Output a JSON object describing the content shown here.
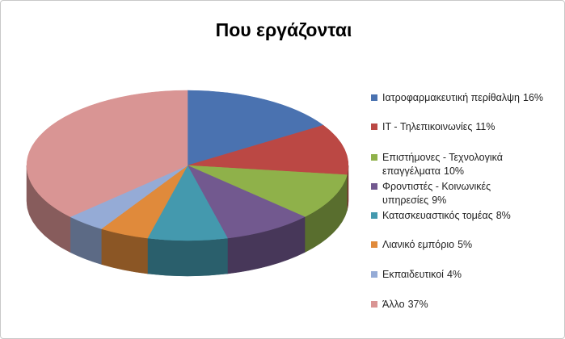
{
  "chart_data": {
    "type": "pie",
    "title": "Που εργάζονται",
    "categories": [
      "Ιατροφαρμακευτική περίθαλψη",
      "IT - Τηλεπικοινωνίες",
      "Επιστήμονες - Τεχνολογικά επαγγέλματα",
      "Φροντιστές - Κοινωνικές υπηρεσίες",
      "Κατασκευαστικός τομέας",
      "Λιανικό εμπόριο",
      "Εκπαιδευτικοί",
      "Άλλο"
    ],
    "values": [
      16,
      11,
      10,
      9,
      8,
      5,
      4,
      37
    ],
    "value_labels": [
      "16%",
      "11%",
      "10%",
      "9%",
      "8%",
      "5%",
      "4%",
      "37%"
    ],
    "colors": [
      "#4a72b0",
      "#bb4844",
      "#8fb14a",
      "#72598f",
      "#4499ae",
      "#e08a3b",
      "#95abd6",
      "#d99594"
    ],
    "legend": "right"
  }
}
